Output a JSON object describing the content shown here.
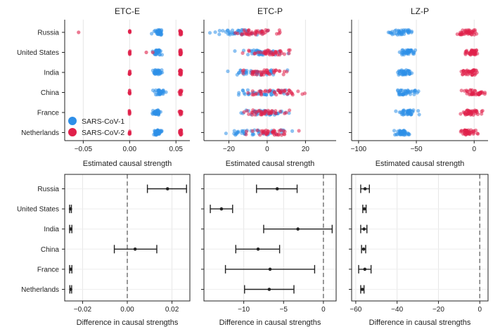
{
  "chart_data": {
    "type": "scatter",
    "countries": [
      "Russia",
      "United States",
      "India",
      "China",
      "France",
      "Netherlands"
    ],
    "legend": [
      {
        "name": "SARS-CoV-1",
        "color": "#2E8FE8"
      },
      {
        "name": "SARS-CoV-2",
        "color": "#E0204A"
      }
    ],
    "top_xlabel": "Estimated causal strength",
    "bottom_xlabel": "Difference in causal strengths",
    "panels": [
      {
        "title": "ETC-E",
        "xlim": [
          -0.07,
          0.065
        ],
        "xticks": [
          -0.05,
          0.0,
          0.05
        ],
        "xtick_labels": [
          "−0.05",
          "0.00",
          "0.05"
        ],
        "clusters": {
          "Russia": {
            "cov1": [
              0.031,
              0.005
            ],
            "cov2": [
              0.055,
              0.001
            ],
            "cov2_extra": [
              [
                -0.055
              ],
              [
                0.0,
                0.0005
              ]
            ]
          },
          "United States": {
            "cov1": [
              0.03,
              0.004
            ],
            "cov2": [
              0.055,
              0.001
            ],
            "cov2_extra": [
              [
                0.018,
                0.025
              ],
              [
                0.0,
                0.0005
              ]
            ]
          },
          "India": {
            "cov1": [
              0.03,
              0.004
            ],
            "cov2": [
              0.055,
              0.001
            ],
            "cov2_extra": [
              [
                0.0
              ],
              [
                0.0,
                0.0005
              ]
            ]
          },
          "China": {
            "cov1": [
              0.032,
              0.007
            ],
            "cov2": [
              0.055,
              0.001
            ],
            "cov2_extra": [
              [
                0.0
              ],
              [
                0.0,
                0.0005
              ]
            ]
          },
          "France": {
            "cov1": [
              0.029,
              0.004
            ],
            "cov2": [
              0.055,
              0.001
            ],
            "cov2_extra": [
              [
                0.0
              ],
              [
                0.0,
                0.0005
              ]
            ]
          },
          "Netherlands": {
            "cov1": [
              0.03,
              0.005
            ],
            "cov2": [
              0.055,
              0.001
            ],
            "cov2_extra": [
              [
                0.0
              ],
              [
                0.0,
                0.0005
              ]
            ]
          }
        }
      },
      {
        "title": "ETC-P",
        "xlim": [
          -33,
          36
        ],
        "xticks": [
          -20,
          0,
          20
        ],
        "xtick_labels": [
          "−20",
          "0",
          "20"
        ],
        "clusters": {
          "Russia": {
            "cov1": [
              -15,
              10
            ],
            "cov2": [
              -6,
              9
            ]
          },
          "United States": {
            "cov1": [
              -5,
              10
            ],
            "cov2": [
              0,
              10
            ]
          },
          "India": {
            "cov1": [
              -7,
              10
            ],
            "cov2": [
              -2,
              10
            ]
          },
          "China": {
            "cov1": [
              0,
              13
            ],
            "cov2": [
              3,
              11
            ]
          },
          "France": {
            "cov1": [
              -2,
              9
            ],
            "cov2": [
              0,
              9
            ]
          },
          "Netherlands": {
            "cov1": [
              -6,
              10
            ],
            "cov2": [
              2,
              8
            ]
          }
        }
      },
      {
        "title": "LZ-P",
        "xlim": [
          -106,
          12
        ],
        "xticks": [
          -100,
          -50,
          0
        ],
        "xtick_labels": [
          "−100",
          "−50",
          "0"
        ],
        "clusters": {
          "Russia": {
            "cov1": [
              -62,
              8
            ],
            "cov2": [
              -6,
              7
            ]
          },
          "United States": {
            "cov1": [
              -58,
              5
            ],
            "cov2": [
              -2,
              5
            ]
          },
          "India": {
            "cov1": [
              -60,
              5
            ],
            "cov2": [
              -4,
              6
            ]
          },
          "China": {
            "cov1": [
              -58,
              7
            ],
            "cov2": [
              0,
              7
            ]
          },
          "France": {
            "cov1": [
              -57,
              6
            ],
            "cov2": [
              -3,
              7
            ]
          },
          "Netherlands": {
            "cov1": [
              -62,
              5
            ],
            "cov2": [
              -4,
              5
            ]
          }
        }
      }
    ],
    "differences": [
      {
        "panel": "ETC-E",
        "xlim": [
          -0.028,
          0.028
        ],
        "xticks": [
          -0.02,
          0.0,
          0.02
        ],
        "xtick_labels": [
          "−0.02",
          "0.00",
          "0.02"
        ],
        "values": [
          {
            "country": "Russia",
            "mean": 0.018,
            "low": 0.009,
            "high": 0.0265
          },
          {
            "country": "United States",
            "mean": -0.0254,
            "low": -0.0258,
            "high": -0.025
          },
          {
            "country": "India",
            "mean": -0.0253,
            "low": -0.0258,
            "high": -0.0248
          },
          {
            "country": "China",
            "mean": 0.0035,
            "low": -0.0058,
            "high": 0.0132
          },
          {
            "country": "France",
            "mean": -0.0253,
            "low": -0.0258,
            "high": -0.0248
          },
          {
            "country": "Netherlands",
            "mean": -0.0253,
            "low": -0.0257,
            "high": -0.0249
          }
        ]
      },
      {
        "panel": "ETC-P",
        "xlim": [
          -15,
          1.6
        ],
        "xticks": [
          -10,
          -5,
          0
        ],
        "xtick_labels": [
          "−10",
          "−5",
          "0"
        ],
        "values": [
          {
            "country": "Russia",
            "mean": -5.8,
            "low": -8.4,
            "high": -3.3
          },
          {
            "country": "United States",
            "mean": -12.8,
            "low": -14.2,
            "high": -11.4
          },
          {
            "country": "India",
            "mean": -3.2,
            "low": -7.5,
            "high": 1.1
          },
          {
            "country": "China",
            "mean": -8.2,
            "low": -11.0,
            "high": -5.5
          },
          {
            "country": "France",
            "mean": -6.7,
            "low": -12.3,
            "high": -1.1
          },
          {
            "country": "Netherlands",
            "mean": -6.8,
            "low": -9.9,
            "high": -3.7
          }
        ]
      },
      {
        "panel": "LZ-P",
        "xlim": [
          -62,
          4
        ],
        "xticks": [
          -60,
          -40,
          -20,
          0
        ],
        "xtick_labels": [
          "−60",
          "−40",
          "−20",
          "0"
        ],
        "values": [
          {
            "country": "Russia",
            "mean": -55.5,
            "low": -57.6,
            "high": -53.4
          },
          {
            "country": "United States",
            "mean": -55.8,
            "low": -56.6,
            "high": -55.0
          },
          {
            "country": "India",
            "mean": -56.0,
            "low": -57.6,
            "high": -54.6
          },
          {
            "country": "China",
            "mean": -56.2,
            "low": -57.2,
            "high": -55.2
          },
          {
            "country": "France",
            "mean": -55.6,
            "low": -58.6,
            "high": -52.6
          },
          {
            "country": "Netherlands",
            "mean": -56.8,
            "low": -57.6,
            "high": -56.0
          }
        ]
      }
    ]
  }
}
